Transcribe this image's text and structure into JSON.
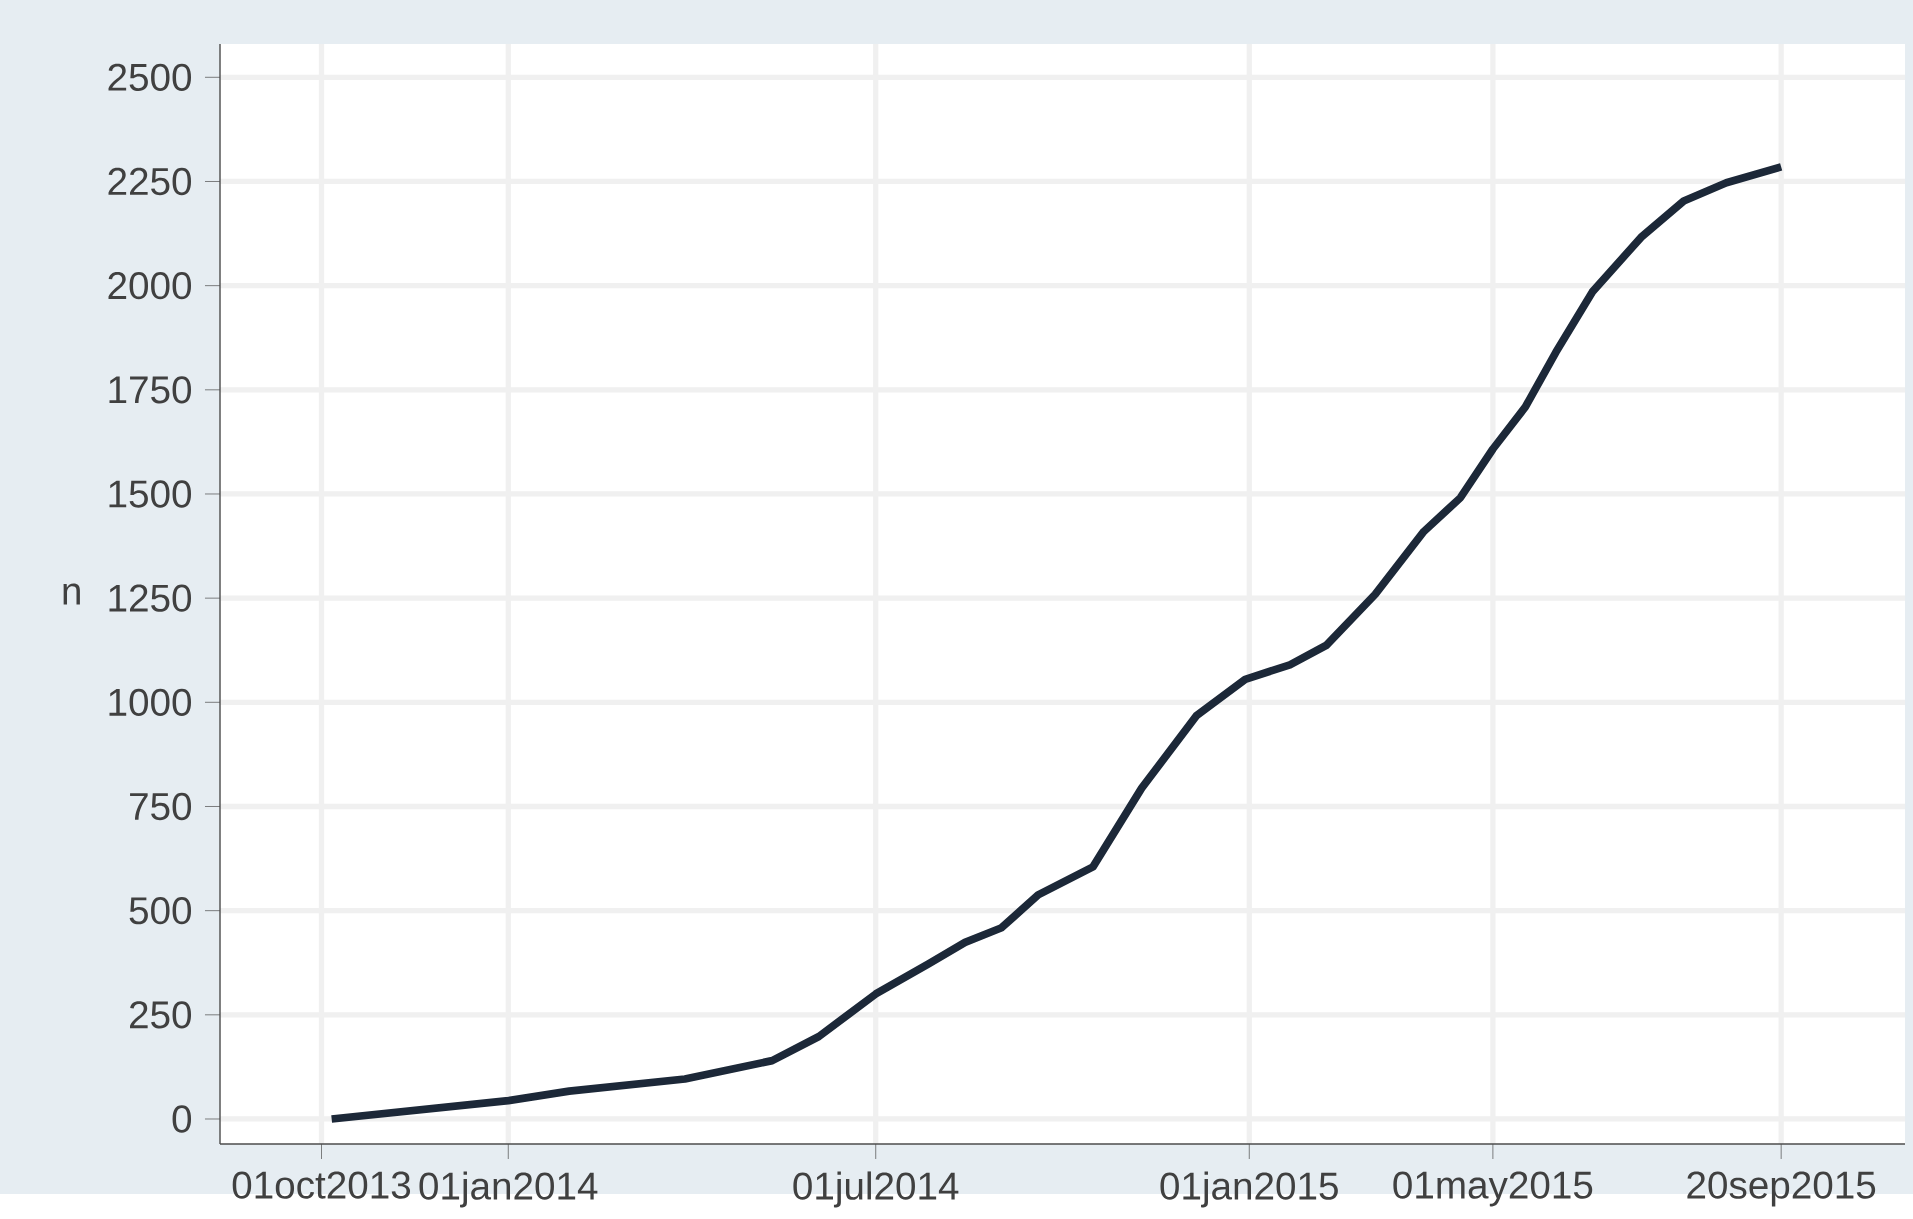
{
  "chart_data": {
    "type": "line",
    "ylabel": "n",
    "x": [
      "2013-10-06",
      "2014-01-01",
      "2014-01-31",
      "2014-03-29",
      "2014-05-11",
      "2014-06-03",
      "2014-07-01",
      "2014-07-27",
      "2014-08-14",
      "2014-09-01",
      "2014-09-19",
      "2014-10-16",
      "2014-11-09",
      "2014-12-06",
      "2014-12-30",
      "2015-01-21",
      "2015-02-08",
      "2015-03-04",
      "2015-03-28",
      "2015-04-15",
      "2015-05-01",
      "2015-05-17",
      "2015-06-01",
      "2015-06-19",
      "2015-07-13",
      "2015-08-03",
      "2015-08-24",
      "2015-09-20"
    ],
    "series": [
      {
        "color": "#1c2838",
        "values": [
          0,
          44,
          67,
          96,
          140,
          198,
          300,
          372,
          424,
          459,
          538,
          605,
          794,
          968,
          1055,
          1090,
          1137,
          1259,
          1410,
          1491,
          1608,
          1709,
          1840,
          1985,
          2116,
          2203,
          2247,
          2285
        ]
      }
    ],
    "xlim": [
      "2013-08-12",
      "2015-11-20"
    ],
    "xticks": [
      {
        "value": "2013-10-01",
        "label": "01oct2013"
      },
      {
        "value": "2014-01-01",
        "label": "01jan2014"
      },
      {
        "value": "2014-07-01",
        "label": "01jul2014"
      },
      {
        "value": "2015-01-01",
        "label": "01jan2015"
      },
      {
        "value": "2015-05-01",
        "label": "01may2015"
      },
      {
        "value": "2015-09-20",
        "label": "20sep2015"
      }
    ],
    "ylim": [
      -60,
      2580
    ],
    "yticks": [
      0,
      250,
      500,
      750,
      1000,
      1250,
      1500,
      1750,
      2000,
      2250,
      2500
    ],
    "grid": true,
    "marker": "none",
    "line_style": "solid"
  }
}
